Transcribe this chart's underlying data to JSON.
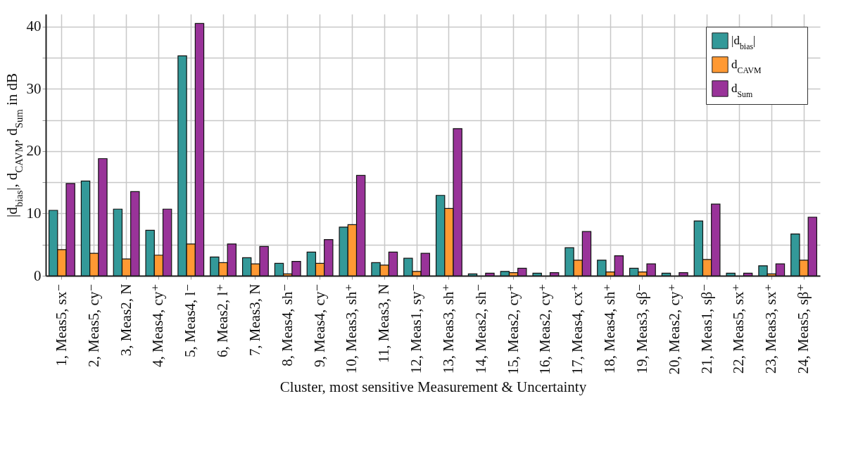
{
  "chart_data": {
    "type": "bar",
    "xlabel": "Cluster, most sensitive Measurement & Uncertainty",
    "ylabel": "|d$_{bias}$|, d$_{CAVM}$, d$_{Sum}$ in dB",
    "categories": [
      "1, Meas5, sx⁻",
      "2, Meas5, cy⁻",
      "3, Meas2, N",
      "4, Meas4, cy⁺",
      "5, Meas4, l⁻",
      "6, Meas2, l⁺",
      "7, Meas3, N",
      "8, Meas4, sh⁻",
      "9, Meas4, cy⁻",
      "10, Meas3, sh⁺",
      "11, Meas3, N",
      "12, Meas1, sy⁻",
      "13, Meas3, sh⁺",
      "14, Meas2, sh⁻",
      "15, Meas2, cy⁺",
      "16, Meas2, cy⁺",
      "17, Meas4, cx⁺",
      "18, Meas4, sh⁺",
      "19, Meas3, sβ⁻",
      "20, Meas2, cy⁺",
      "21, Meas1, sβ⁻",
      "22, Meas5, sx⁺",
      "23, Meas3, sx⁺",
      "24, Meas5, sβ⁺"
    ],
    "series": [
      {
        "name": "|d$_{bias}$|",
        "color": "#339999",
        "values": [
          10.5,
          15.2,
          10.7,
          7.3,
          35.3,
          3.0,
          2.9,
          2.0,
          3.8,
          7.8,
          2.1,
          2.8,
          12.9,
          0.3,
          0.7,
          0.4,
          4.5,
          2.5,
          1.2,
          0.4,
          8.8,
          0.4,
          1.6,
          6.7
        ]
      },
      {
        "name": "d$_{CAVM}$",
        "color": "#ff9933",
        "values": [
          4.2,
          3.6,
          2.7,
          3.3,
          5.1,
          2.1,
          1.9,
          0.3,
          2.0,
          8.2,
          1.7,
          0.7,
          10.8,
          null,
          0.5,
          null,
          2.5,
          0.6,
          0.6,
          null,
          2.6,
          null,
          0.3,
          2.5
        ]
      },
      {
        "name": "d$_{Sum}$",
        "color": "#993399",
        "values": [
          14.8,
          18.8,
          13.5,
          10.7,
          40.5,
          5.1,
          4.7,
          2.3,
          5.8,
          16.1,
          3.8,
          3.6,
          23.6,
          0.4,
          1.2,
          0.5,
          7.1,
          3.2,
          1.9,
          0.5,
          11.5,
          0.4,
          1.9,
          9.4
        ]
      }
    ],
    "ylim": [
      0,
      42
    ],
    "yticks": [
      0,
      {
        "value": 5,
        "label": null
      },
      10,
      {
        "value": 15,
        "label": null
      },
      20,
      {
        "value": 25,
        "label": null
      },
      30,
      {
        "value": 35,
        "label": null
      },
      40
    ],
    "grid": true,
    "legend": "top right"
  }
}
